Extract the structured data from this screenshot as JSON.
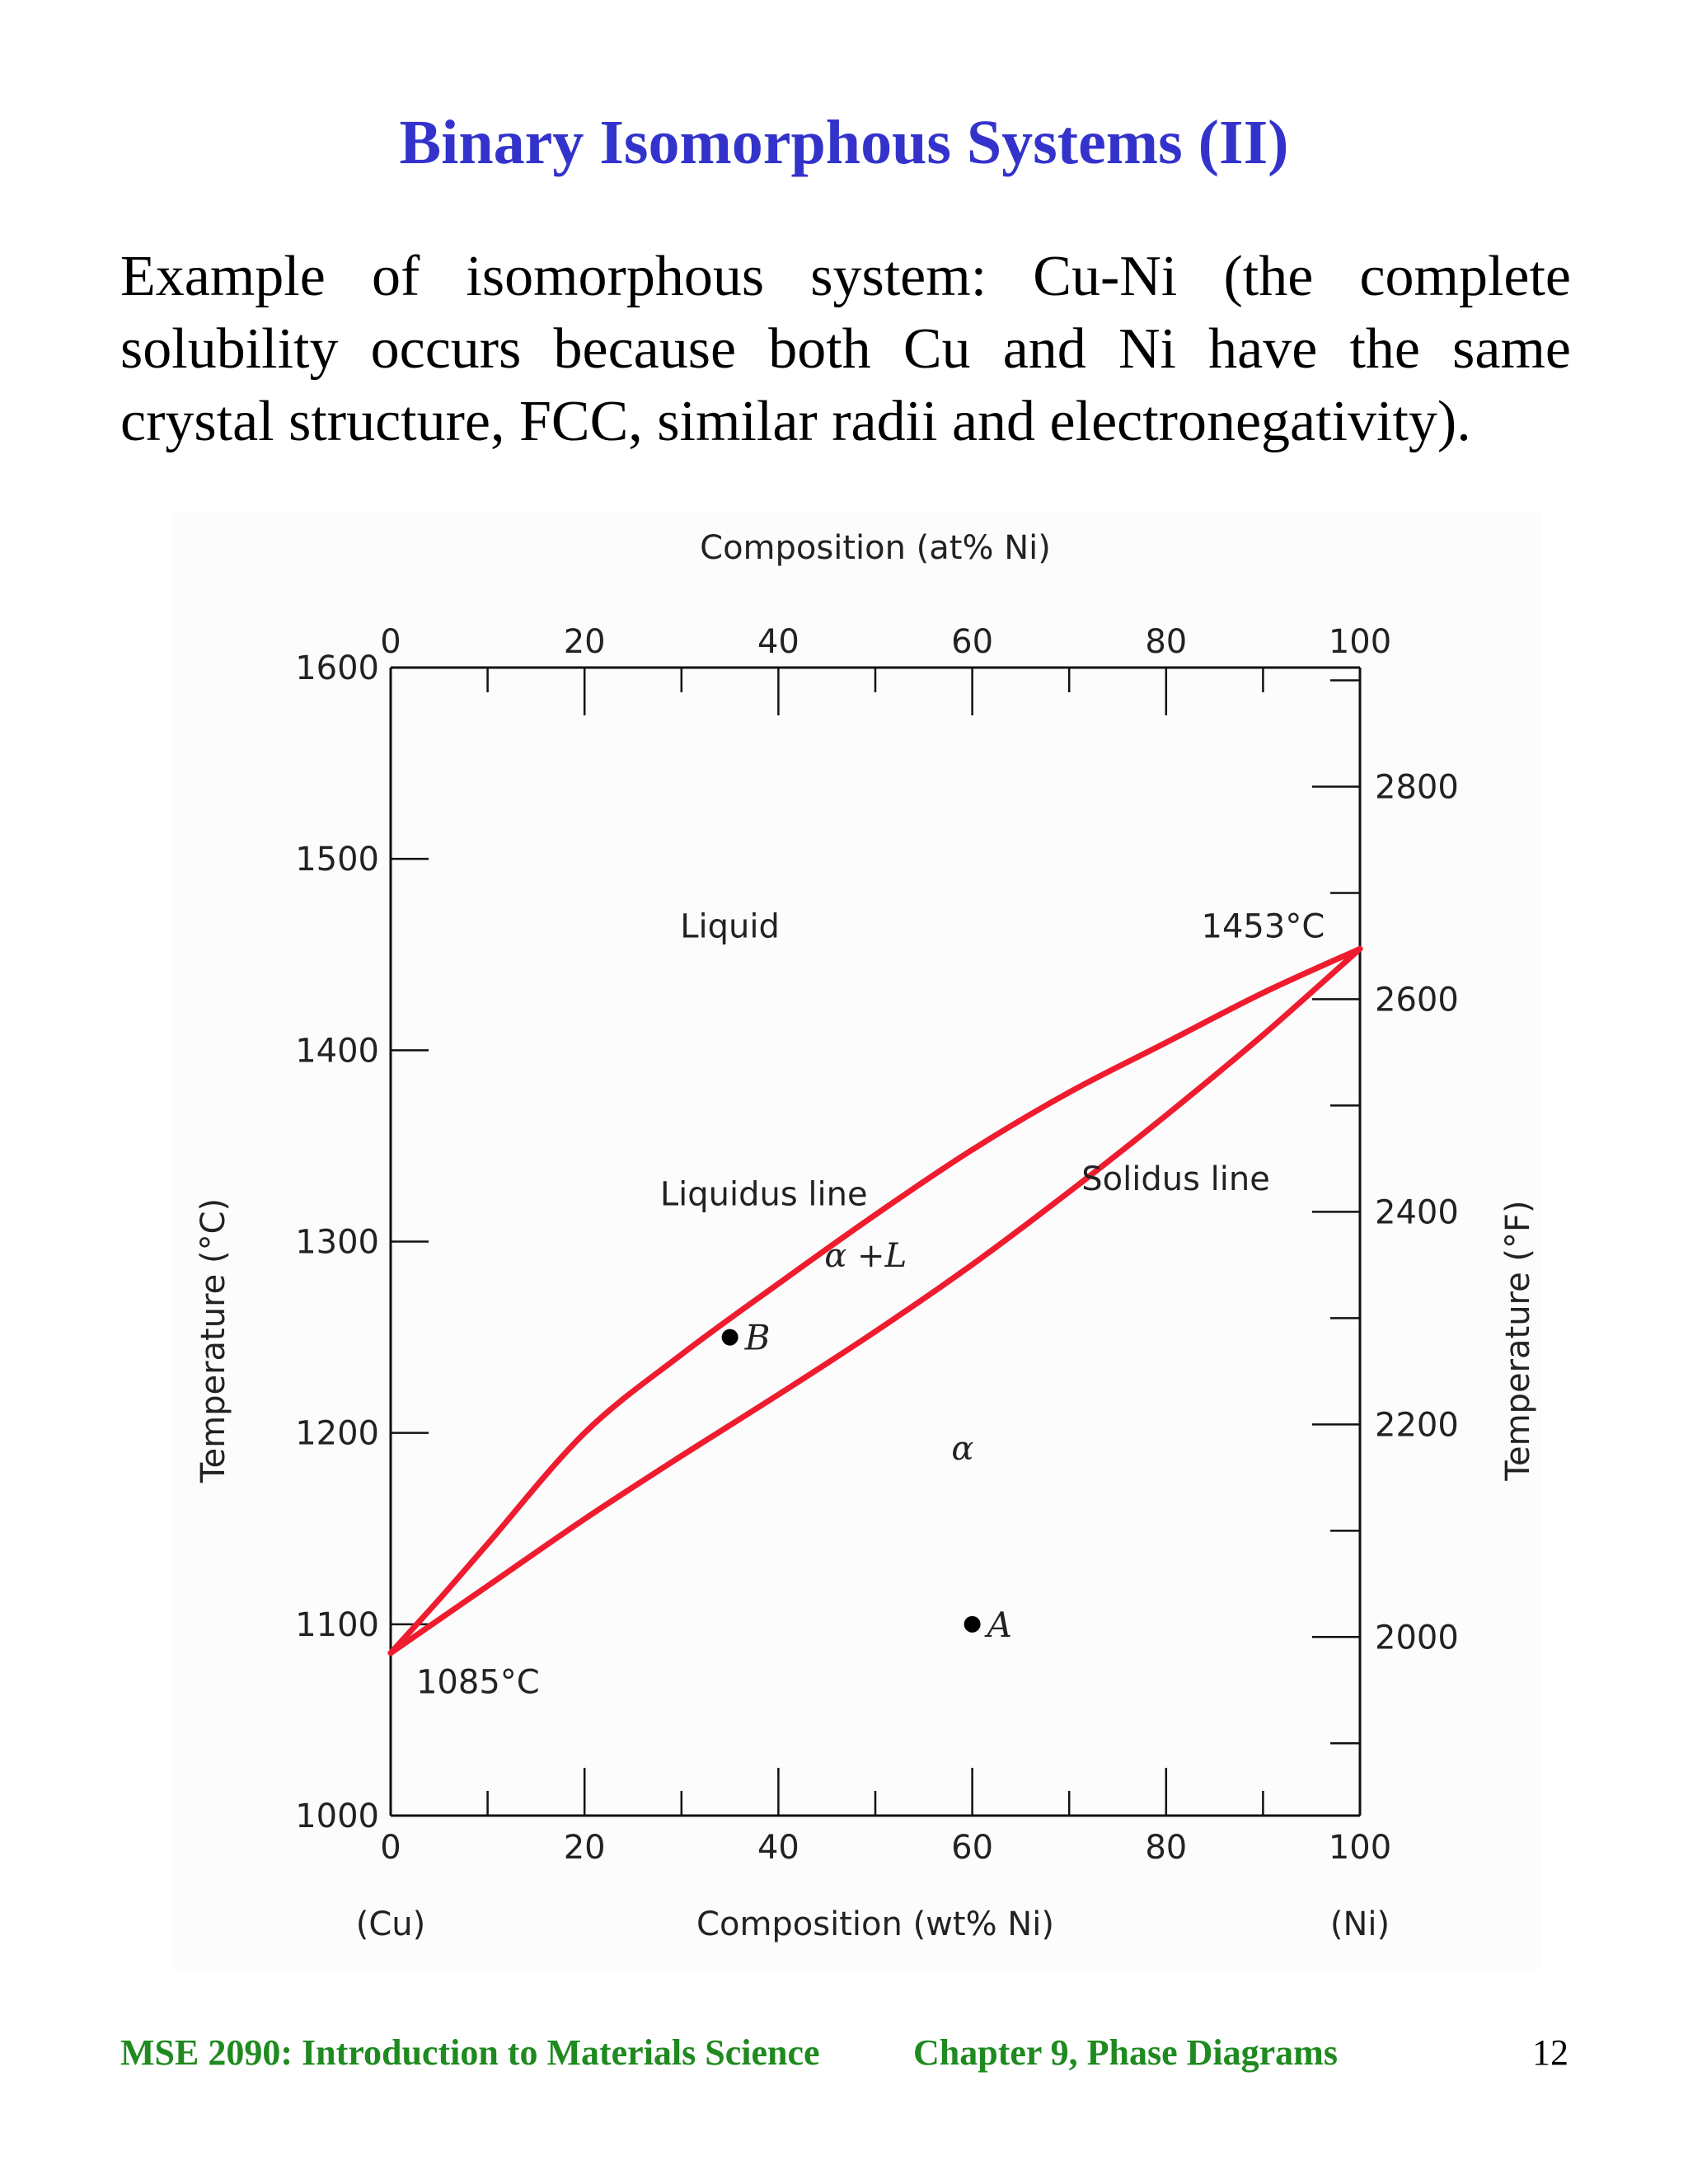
{
  "slide": {
    "title": "Binary Isomorphous Systems (II)",
    "body": "Example of isomorphous system: Cu-Ni  (the complete solubility occurs because both Cu and Ni have the same crystal structure, FCC, similar radii and electronegativity).",
    "footer_course": "MSE 2090: Introduction to Materials Science",
    "footer_chapter": "Chapter 9, Phase Diagrams",
    "page_number": "12"
  },
  "chart_data": {
    "type": "line",
    "xlabel_top": "Composition (at% Ni)",
    "xlabel_bottom": "Composition (wt% Ni)",
    "ylabel_left": "Temperature (°C)",
    "ylabel_right": "Temperature (°F)",
    "xlim": [
      0,
      100
    ],
    "ylim": [
      1000,
      1600
    ],
    "x_ticks_labels": [
      "0",
      "20",
      "40",
      "60",
      "80",
      "100"
    ],
    "x_ticks": [
      0,
      20,
      40,
      60,
      80,
      100
    ],
    "y_left_ticks": [
      1000,
      1100,
      1200,
      1300,
      1400,
      1500,
      1600
    ],
    "y_left_tick_labels": [
      "1000",
      "1100",
      "1200",
      "1300",
      "1400",
      "1500",
      "1600"
    ],
    "y_right_ticks": [
      2000,
      2200,
      2400,
      2600,
      2800
    ],
    "y_right_tick_labels": [
      "2000",
      "2200",
      "2400",
      "2600",
      "2800"
    ],
    "end_labels": {
      "left": "(Cu)",
      "right": "(Ni)"
    },
    "series": [
      {
        "name": "Liquidus line",
        "color": "#ee1c2e",
        "x": [
          0,
          5,
          10,
          20,
          30,
          40,
          50,
          60,
          70,
          80,
          90,
          100
        ],
        "y": [
          1085,
          1113,
          1142,
          1200,
          1241,
          1278,
          1314,
          1348,
          1378,
          1404,
          1430,
          1453
        ]
      },
      {
        "name": "Solidus line",
        "color": "#ee1c2e",
        "x": [
          0,
          10,
          20,
          30,
          40,
          50,
          60,
          70,
          80,
          90,
          100
        ],
        "y": [
          1085,
          1120,
          1155,
          1188,
          1220,
          1253,
          1288,
          1326,
          1366,
          1408,
          1453
        ]
      }
    ],
    "points": [
      {
        "label": "A",
        "x": 60,
        "y": 1100
      },
      {
        "label": "B",
        "x": 35,
        "y": 1250
      }
    ],
    "annotations": [
      {
        "text": "Liquid",
        "x": 35,
        "y": 1465
      },
      {
        "text": "1453°C",
        "x": 90,
        "y": 1465
      },
      {
        "text": "Liquidus line",
        "x": 38.5,
        "y": 1325
      },
      {
        "text": "Solidus line",
        "x": 81,
        "y": 1333
      },
      {
        "text": "α +L",
        "x": 49,
        "y": 1293
      },
      {
        "text": "α",
        "x": 59,
        "y": 1192
      },
      {
        "text": "1085°C",
        "x": 9,
        "y": 1070
      }
    ]
  }
}
